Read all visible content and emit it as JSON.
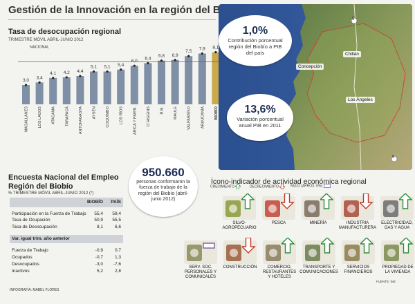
{
  "title": "Gestión de la Innovación en la región del Biobío",
  "chart_data": {
    "type": "bar",
    "title": "Tasa de desocupación regional",
    "subtitle": "TRIMESTRE MÓVIL ABRIL-JUNIO 2012",
    "categories": [
      "MAGALLANES",
      "LOS LAGOS",
      "ATACAMA",
      "TARAPACÁ",
      "ANTOFAGASTA",
      "AYSÉN",
      "COQUIMBO",
      "LOS RÍOS",
      "ARICA Y PARIN.",
      "O´HIGGINS",
      "R.M.",
      "MAULE",
      "VALPARAÍSO",
      "ARAUCANÍA",
      "BIOBÍO"
    ],
    "values": [
      3.0,
      3.4,
      4.1,
      4.2,
      4.4,
      5.1,
      5.1,
      5.4,
      6.0,
      6.4,
      6.8,
      6.9,
      7.5,
      7.9,
      8.1
    ],
    "value_labels": [
      "3,0",
      "3,4",
      "4,1",
      "4,2",
      "4,4",
      "5,1",
      "5,1",
      "5,4",
      "6,0",
      "6,4",
      "6,8",
      "6,9",
      "7,5",
      "7,9",
      "8,1"
    ],
    "reference_line": {
      "value": 6.6,
      "label": "6,6",
      "text": "TASA NACIONAL"
    },
    "highlight": "BIOBÍO",
    "colors": {
      "bar": "#7f8fa5",
      "highlight": "#c9a94a",
      "reference": "#c0392b"
    },
    "xlabel": "",
    "ylabel": ""
  },
  "map": {
    "bubble_pib": {
      "value": "1,0%",
      "text": "Contribución porcentual región del Biobío a PIB del país"
    },
    "bubble_var": {
      "value": "13,6%",
      "text": "Variación porcentual anual PIB en 2011"
    },
    "cities": [
      "Concepción",
      "Chillán",
      "Los Ángeles"
    ],
    "route_markers": [
      "5",
      "5"
    ]
  },
  "encuesta": {
    "title": "Encuesta Nacional del Empleo Región del Biobío",
    "subtitle": "% TRIMESTRE MÓVIL ABRIL-JUNIO 2012 (*)",
    "columns": [
      "BIOBÍO",
      "PAÍS"
    ],
    "rows": [
      {
        "label": "Participación en la Fuerza de Trabajo",
        "biobio": "55,4",
        "pais": "59,4"
      },
      {
        "label": "Tasa de Ocupación",
        "biobio": "50,9",
        "pais": "55,5"
      },
      {
        "label": "Tasa de Desocupación",
        "biobio": "8,1",
        "pais": "6,6"
      }
    ],
    "section": "Var. igual trim. año anterior",
    "var_rows": [
      {
        "label": "Fuerza de Trabajo",
        "biobio": "-0,9",
        "pais": "0,7"
      },
      {
        "label": "Ocupados",
        "biobio": "-0,7",
        "pais": "1,3"
      },
      {
        "label": "Desocupados",
        "biobio": "-3,0",
        "pais": "-7,6"
      },
      {
        "label": "Inactivos",
        "biobio": "5,2",
        "pais": "2,8"
      }
    ],
    "credit": "INFOGRAFÍA: MABEL FLORES"
  },
  "center": {
    "value": "950.660",
    "text": "personas conformaron la fuerza de trabajo de la región del Biobío (abril-junio 2012)"
  },
  "icono": {
    "title": "Ícono-indicador de actividad económica regional",
    "legend": [
      "CRECIMIENTO",
      "DECRECIMIENTO",
      "NULO (APROX. 0%)"
    ],
    "sectors": [
      {
        "label": "SILVO-\nAGROPECUARIO",
        "trend": "up"
      },
      {
        "label": "PESCA",
        "trend": "down"
      },
      {
        "label": "MINERÍA",
        "trend": "up"
      },
      {
        "label": "INDUSTRIA\nMANUFACTURERA",
        "trend": "down"
      },
      {
        "label": "ELECTRICIDAD,\nGAS Y AGUA",
        "trend": "up"
      },
      {
        "label": "SERV. SOC.\nPERSONALES Y\nCOMUNICALES",
        "trend": "flat"
      },
      {
        "label": "CONSTRUCCIÓN",
        "trend": "down"
      },
      {
        "label": "COMERCIO,\nRESTAURANTES\nY HOTELES",
        "trend": "up"
      },
      {
        "label": "TRANSPORTE Y\nCOMUNICACIONES",
        "trend": "up"
      },
      {
        "label": "SERVICIOS\nFINANCIEROS",
        "trend": "up"
      },
      {
        "label": "PROPIEDAD DE\nLA VIVIENDA",
        "trend": "up"
      }
    ],
    "source": "FUENTE: INE"
  }
}
